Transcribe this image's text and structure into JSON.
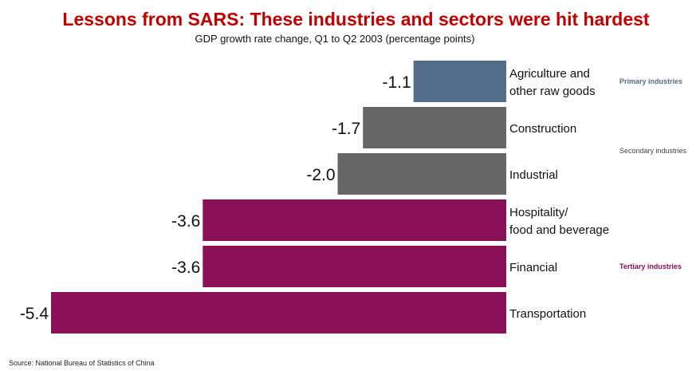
{
  "chart_data": {
    "type": "bar",
    "orientation": "horizontal",
    "title": "Lessons from SARS: These industries and sectors were hit hardest",
    "subtitle": "GDP growth rate change, Q1 to Q2 2003 (percentage points)",
    "categories": [
      [
        "Agriculture and",
        "other raw goods"
      ],
      [
        "Construction"
      ],
      [
        "Industrial"
      ],
      [
        "Hospitality/",
        "food and beverage"
      ],
      [
        "Financial"
      ],
      [
        "Transportation"
      ]
    ],
    "values": [
      -1.1,
      -1.7,
      -2.0,
      -3.6,
      -3.6,
      -5.4
    ],
    "value_labels": [
      "-1.1",
      "-1.7",
      "-2.0",
      "-3.6",
      "-3.6",
      "-5.4"
    ],
    "bar_groups": [
      "primary",
      "secondary",
      "secondary",
      "tertiary",
      "tertiary",
      "tertiary"
    ],
    "groups": [
      {
        "key": "primary",
        "label": "Primary industries",
        "color": "#526d87",
        "rows": [
          0
        ]
      },
      {
        "key": "secondary",
        "label": "Secondary industries",
        "color": "#666666",
        "rows": [
          1,
          2
        ]
      },
      {
        "key": "tertiary",
        "label": "Tertiary industries",
        "color": "#8a0f56",
        "rows": [
          3,
          4,
          5
        ]
      }
    ],
    "xlim": [
      -5.4,
      0
    ],
    "grid": false,
    "legend": "right"
  },
  "source": "Source: National Bureau of Statistics of China",
  "colors": {
    "title": "#c00000",
    "secondary_label": "#444444"
  }
}
